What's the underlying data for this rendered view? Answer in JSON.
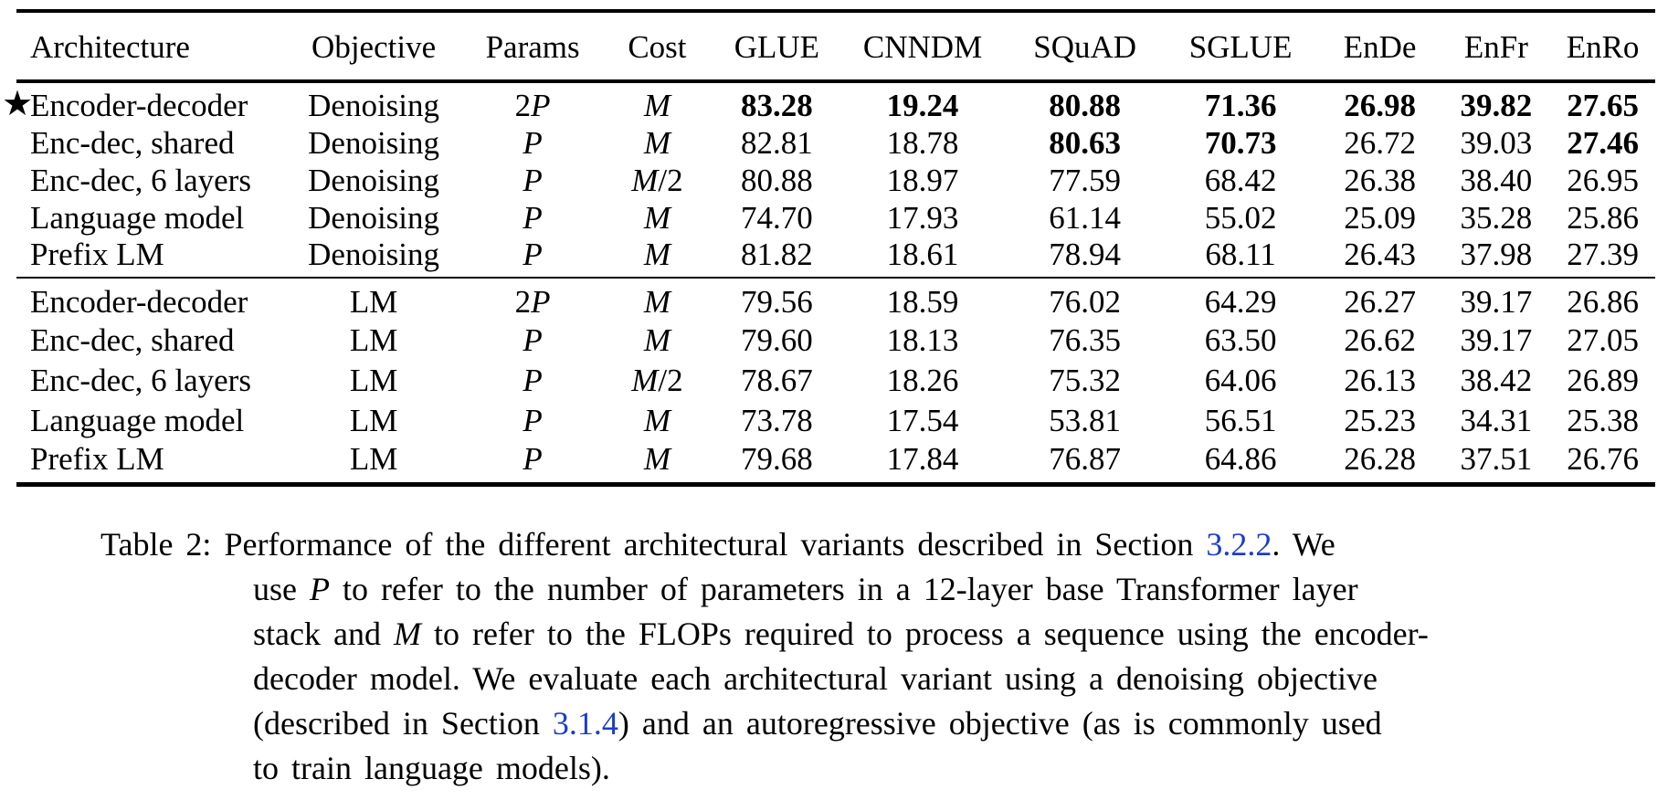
{
  "colors": {
    "text": "#000000",
    "background": "#ffffff",
    "link_blue": "#1c3dc8",
    "rule": "#000000"
  },
  "table": {
    "star_symbol": "★",
    "columns": [
      "Architecture",
      "Objective",
      "Params",
      "Cost",
      "GLUE",
      "CNNDM",
      "SQuAD",
      "SGLUE",
      "EnDe",
      "EnFr",
      "EnRo"
    ],
    "groups": [
      {
        "name": "denoising-objective-block",
        "rows": [
          {
            "star": true,
            "architecture": "Encoder-decoder",
            "objective": "Denoising",
            "params": "2P",
            "cost": "M",
            "values": [
              "83.28",
              "19.24",
              "80.88",
              "71.36",
              "26.98",
              "39.82",
              "27.65"
            ],
            "bold": [
              true,
              true,
              true,
              true,
              true,
              true,
              true
            ]
          },
          {
            "star": false,
            "architecture": "Enc-dec, shared",
            "objective": "Denoising",
            "params": "P",
            "cost": "M",
            "values": [
              "82.81",
              "18.78",
              "80.63",
              "70.73",
              "26.72",
              "39.03",
              "27.46"
            ],
            "bold": [
              false,
              false,
              true,
              true,
              false,
              false,
              true
            ]
          },
          {
            "star": false,
            "architecture": "Enc-dec, 6 layers",
            "objective": "Denoising",
            "params": "P",
            "cost": "M/2",
            "values": [
              "80.88",
              "18.97",
              "77.59",
              "68.42",
              "26.38",
              "38.40",
              "26.95"
            ],
            "bold": [
              false,
              false,
              false,
              false,
              false,
              false,
              false
            ]
          },
          {
            "star": false,
            "architecture": "Language model",
            "objective": "Denoising",
            "params": "P",
            "cost": "M",
            "values": [
              "74.70",
              "17.93",
              "61.14",
              "55.02",
              "25.09",
              "35.28",
              "25.86"
            ],
            "bold": [
              false,
              false,
              false,
              false,
              false,
              false,
              false
            ]
          },
          {
            "star": false,
            "architecture": "Prefix LM",
            "objective": "Denoising",
            "params": "P",
            "cost": "M",
            "values": [
              "81.82",
              "18.61",
              "78.94",
              "68.11",
              "26.43",
              "37.98",
              "27.39"
            ],
            "bold": [
              false,
              false,
              false,
              false,
              false,
              false,
              false
            ]
          }
        ]
      },
      {
        "name": "lm-objective-block",
        "rows": [
          {
            "star": false,
            "architecture": "Encoder-decoder",
            "objective": "LM",
            "params": "2P",
            "cost": "M",
            "values": [
              "79.56",
              "18.59",
              "76.02",
              "64.29",
              "26.27",
              "39.17",
              "26.86"
            ],
            "bold": [
              false,
              false,
              false,
              false,
              false,
              false,
              false
            ]
          },
          {
            "star": false,
            "architecture": "Enc-dec, shared",
            "objective": "LM",
            "params": "P",
            "cost": "M",
            "values": [
              "79.60",
              "18.13",
              "76.35",
              "63.50",
              "26.62",
              "39.17",
              "27.05"
            ],
            "bold": [
              false,
              false,
              false,
              false,
              false,
              false,
              false
            ]
          },
          {
            "star": false,
            "architecture": "Enc-dec, 6 layers",
            "objective": "LM",
            "params": "P",
            "cost": "M/2",
            "values": [
              "78.67",
              "18.26",
              "75.32",
              "64.06",
              "26.13",
              "38.42",
              "26.89"
            ],
            "bold": [
              false,
              false,
              false,
              false,
              false,
              false,
              false
            ]
          },
          {
            "star": false,
            "architecture": "Language model",
            "objective": "LM",
            "params": "P",
            "cost": "M",
            "values": [
              "73.78",
              "17.54",
              "53.81",
              "56.51",
              "25.23",
              "34.31",
              "25.38"
            ],
            "bold": [
              false,
              false,
              false,
              false,
              false,
              false,
              false
            ]
          },
          {
            "star": false,
            "architecture": "Prefix LM",
            "objective": "LM",
            "params": "P",
            "cost": "M",
            "values": [
              "79.68",
              "17.84",
              "76.87",
              "64.86",
              "26.28",
              "37.51",
              "26.76"
            ],
            "bold": [
              false,
              false,
              false,
              false,
              false,
              false,
              false
            ]
          }
        ]
      }
    ]
  },
  "caption": {
    "label": "Table 2:",
    "lines": [
      [
        {
          "t": "Performance of the different architectural variants described in Section ",
          "k": "plain"
        },
        {
          "t": "3.2.2",
          "k": "link"
        },
        {
          "t": ". We",
          "k": "plain"
        }
      ],
      [
        {
          "t": "use ",
          "k": "plain"
        },
        {
          "t": "P",
          "k": "math"
        },
        {
          "t": " to refer to the number of parameters in a 12-layer base Transformer layer",
          "k": "plain"
        }
      ],
      [
        {
          "t": "stack and ",
          "k": "plain"
        },
        {
          "t": "M",
          "k": "math"
        },
        {
          "t": " to refer to the FLOPs required to process a sequence using the encoder-",
          "k": "plain"
        }
      ],
      [
        {
          "t": "decoder model. We evaluate each architectural variant using a denoising objective",
          "k": "plain"
        }
      ],
      [
        {
          "t": "(described in Section ",
          "k": "plain"
        },
        {
          "t": "3.1.4",
          "k": "link"
        },
        {
          "t": ") and an autoregressive objective (as is commonly used",
          "k": "plain"
        }
      ],
      [
        {
          "t": "to train language models).",
          "k": "plain"
        }
      ]
    ]
  }
}
